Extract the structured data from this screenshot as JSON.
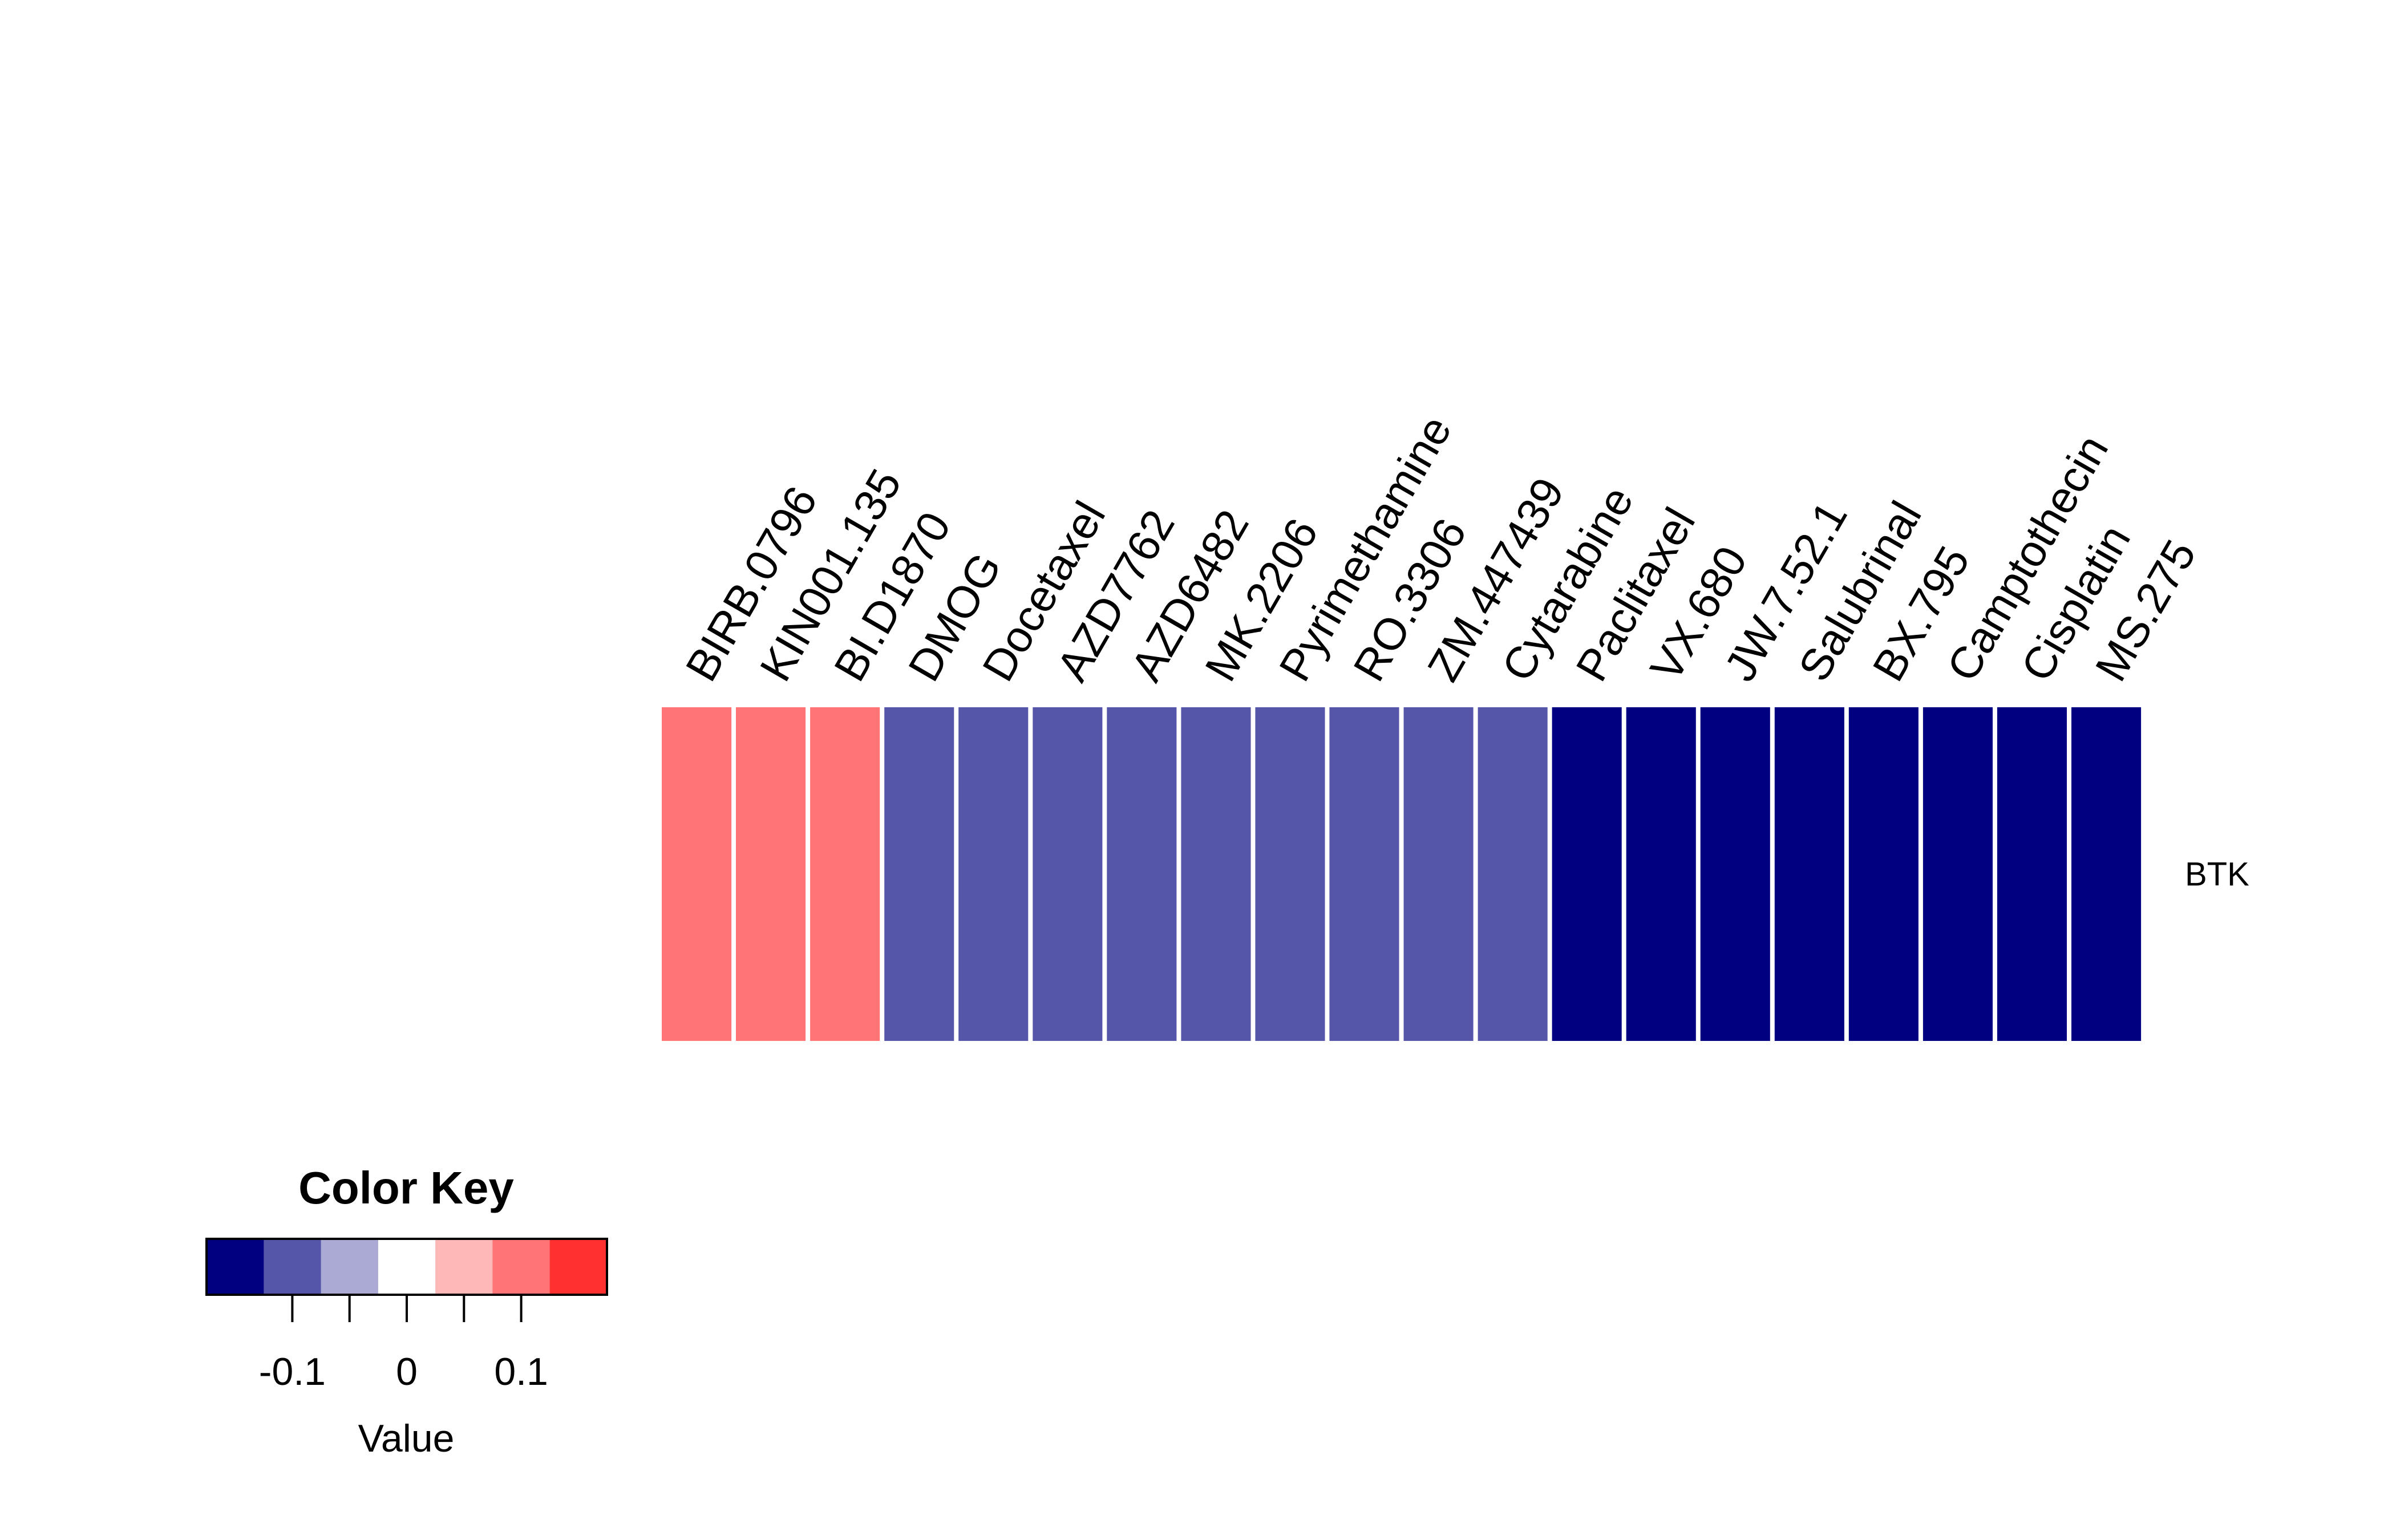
{
  "chart_data": {
    "type": "heatmap",
    "rows": [
      "BTK"
    ],
    "columns": [
      "BIRB.0796",
      "KIN001.135",
      "BI.D1870",
      "DMOG",
      "Docetaxel",
      "AZD7762",
      "AZD6482",
      "MK.2206",
      "Pyrimethamine",
      "RO.3306",
      "ZM.447439",
      "Cytarabine",
      "Paclitaxel",
      "VX.680",
      "JW.7.52.1",
      "Salubrinal",
      "BX.795",
      "Camptothecin",
      "Cisplatin",
      "MS.275"
    ],
    "values": [
      [
        0.1,
        0.1,
        0.1,
        -0.1,
        -0.1,
        -0.1,
        -0.1,
        -0.1,
        -0.1,
        -0.1,
        -0.1,
        -0.1,
        -0.15,
        -0.15,
        -0.15,
        -0.15,
        -0.15,
        -0.15,
        -0.15,
        -0.15
      ]
    ],
    "color_key": {
      "title": "Color Key",
      "xlabel": "Value",
      "breaks": [
        -0.175,
        -0.125,
        -0.075,
        -0.025,
        0.025,
        0.075,
        0.125,
        0.175
      ],
      "colors": [
        "#000080",
        "#5555AA",
        "#AAAAD5",
        "#FFFFFF",
        "#FFB8B8",
        "#FF7474",
        "#FF3030"
      ],
      "ticks": [
        -0.1,
        -0.05,
        0,
        0.05,
        0.1
      ],
      "tick_labels": [
        "-0.1",
        "",
        "0",
        "",
        "0.1"
      ]
    }
  }
}
